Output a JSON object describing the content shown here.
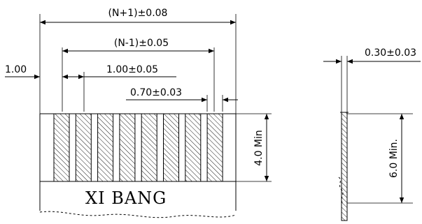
{
  "labels": {
    "overall_width": "(N+1)±0.08",
    "pitch_span": "(N-1)±0.05",
    "edge_margin": "1.00",
    "pitch": "1.00±0.05",
    "contact_width": "0.70±0.03",
    "contact_length": "4.0 Min",
    "thickness": "0.30±0.03",
    "side_length": "6.0 Min.",
    "brand": "XI BANG"
  },
  "drawing": {
    "contact_count": 8,
    "line_color": "#000000"
  }
}
